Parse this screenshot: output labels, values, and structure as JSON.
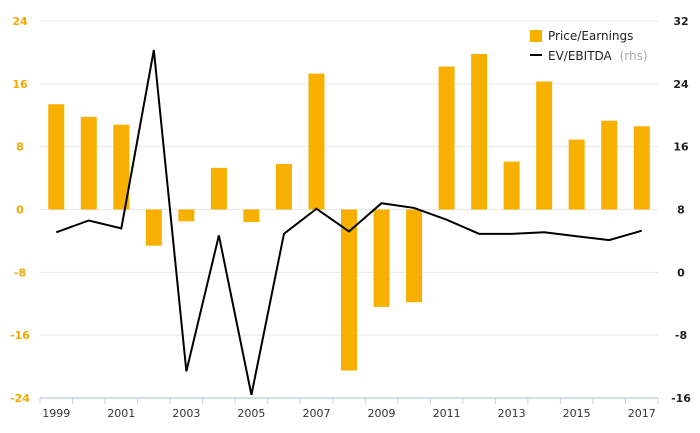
{
  "chart_data": {
    "type": "bar+line",
    "colors": {
      "bar": "#f7b000",
      "line": "#000000",
      "axis": "#c5d0e6"
    },
    "x": [
      1999,
      2000,
      2001,
      2002,
      2003,
      2004,
      2005,
      2006,
      2007,
      2008,
      2009,
      2010,
      2011,
      2012,
      2013,
      2014,
      2015,
      2016,
      2017
    ],
    "x_tick_labels": [
      "1999",
      "2001",
      "2003",
      "2005",
      "2007",
      "2009",
      "2011",
      "2013",
      "2015",
      "2017"
    ],
    "y_left_ticks": [
      "24",
      "16",
      "8",
      "0",
      "-8",
      "-16",
      "-24"
    ],
    "y_right_ticks": [
      "32",
      "24",
      "16",
      "8",
      "0",
      "-8",
      "-16"
    ],
    "ylim_left": [
      -24,
      24
    ],
    "ylim_right": [
      -16,
      32
    ],
    "grid": true,
    "legend_position": "top-right",
    "series": [
      {
        "name": "Price/Earnings",
        "type": "bar",
        "axis": "left",
        "values": [
          13.4,
          11.8,
          10.8,
          -4.6,
          -1.5,
          5.3,
          -1.6,
          5.8,
          17.3,
          -20.5,
          -12.4,
          -11.8,
          18.2,
          19.8,
          6.1,
          16.3,
          8.9,
          11.3,
          10.6
        ]
      },
      {
        "name": "EV/EBITDA",
        "type": "line",
        "axis": "right",
        "values": [
          5.1,
          6.6,
          5.6,
          28.3,
          -12.6,
          4.7,
          -15.6,
          4.9,
          8.1,
          5.2,
          8.8,
          8.2,
          6.7,
          4.9,
          4.9,
          5.1,
          4.6,
          4.1,
          5.3
        ]
      }
    ],
    "legend": [
      {
        "label": "Price/Earnings",
        "note": ""
      },
      {
        "label": "EV/EBITDA",
        "note": "(rhs)"
      }
    ]
  }
}
